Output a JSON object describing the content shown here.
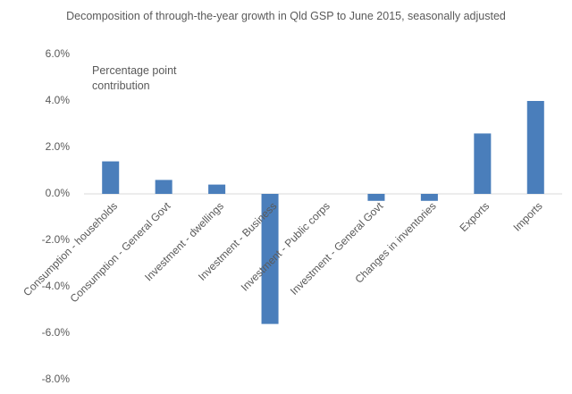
{
  "chart_data": {
    "type": "bar",
    "title": "Decomposition of through-the-year growth in Qld GSP to June 2015, seasonally adjusted",
    "annotation": "Percentage point contribution",
    "categories": [
      "Consumption - households",
      "Consumption - General Govt",
      "Investment - dwellings",
      "Investment - Business",
      "Investment - Public corps",
      "Investment - General Govt",
      "Changes in inventories",
      "Exports",
      "Imports"
    ],
    "values": [
      1.4,
      0.6,
      0.4,
      -5.6,
      0,
      -0.3,
      -0.3,
      2.6,
      4.0
    ],
    "color": "#4a7ebb",
    "ylim": [
      -8,
      6
    ],
    "yticks": [
      {
        "value": -8,
        "label": "-8.0%"
      },
      {
        "value": -6,
        "label": "-6.0%"
      },
      {
        "value": -4,
        "label": "-4.0%"
      },
      {
        "value": -2,
        "label": "-2.0%"
      },
      {
        "value": 0,
        "label": "0.0%"
      },
      {
        "value": 2,
        "label": "2.0%"
      },
      {
        "value": 4,
        "label": "4.0%"
      },
      {
        "value": 6,
        "label": "6.0%"
      }
    ],
    "grid": false
  }
}
